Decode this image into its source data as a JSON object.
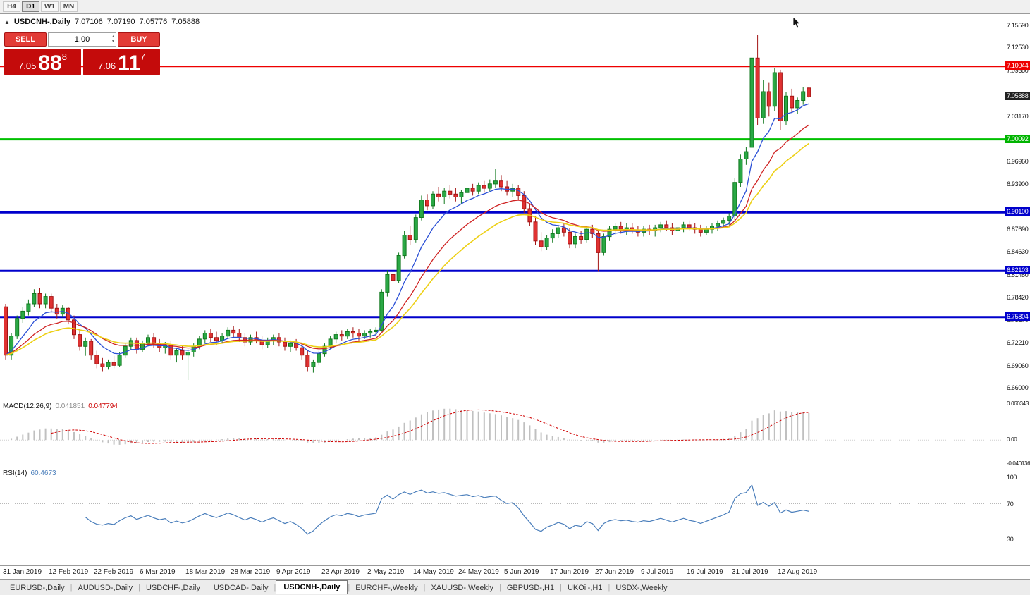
{
  "toolbar": {
    "timeframes": [
      {
        "label": "H4",
        "active": false
      },
      {
        "label": "D1",
        "active": true
      },
      {
        "label": "W1",
        "active": false
      },
      {
        "label": "MN",
        "active": false
      }
    ]
  },
  "chart_header": {
    "expand_icon": "▲",
    "symbol": "USDCNH-,Daily",
    "open": "7.07106",
    "high": "7.07190",
    "low": "7.05776",
    "close": "7.05888"
  },
  "trade_panel": {
    "sell_label": "SELL",
    "buy_label": "BUY",
    "volume": "1.00",
    "volume_up_icon": "▴",
    "volume_down_icon": "▾",
    "sell_price_small": "7.05",
    "sell_price_big": "88",
    "sell_price_sup": "8",
    "buy_price_small": "7.06",
    "buy_price_big": "11",
    "buy_price_sup": "7"
  },
  "indicators": {
    "macd_name": "MACD(12,26,9)",
    "macd_main": "0.041851",
    "macd_signal": "0.047794",
    "rsi_name": "RSI(14)",
    "rsi_value": "60.4673"
  },
  "price_scale": {
    "ticks": [
      {
        "label": "7.15590",
        "value": 7.1559
      },
      {
        "label": "7.12530",
        "value": 7.1253
      },
      {
        "label": "7.09380",
        "value": 7.0938
      },
      {
        "label": "7.03170",
        "value": 7.0317
      },
      {
        "label": "6.96960",
        "value": 6.9696
      },
      {
        "label": "6.93900",
        "value": 6.939
      },
      {
        "label": "6.87690",
        "value": 6.8769
      },
      {
        "label": "6.84630",
        "value": 6.8463
      },
      {
        "label": "6.81480",
        "value": 6.8148
      },
      {
        "label": "6.78420",
        "value": 6.7842
      },
      {
        "label": "6.75270",
        "value": 6.7527
      },
      {
        "label": "6.72210",
        "value": 6.7221
      },
      {
        "label": "6.69060",
        "value": 6.6906
      },
      {
        "label": "6.66000",
        "value": 6.66
      }
    ],
    "badges": [
      {
        "label": "7.10044",
        "value": 7.10044,
        "color": "#ee0000"
      },
      {
        "label": "7.05888",
        "value": 7.05888,
        "color": "#222222"
      },
      {
        "label": "7.00092",
        "value": 7.00092,
        "color": "#00b400"
      },
      {
        "label": "6.90100",
        "value": 6.901,
        "color": "#0000cc"
      },
      {
        "label": "6.82103",
        "value": 6.82103,
        "color": "#0000cc"
      },
      {
        "label": "6.75804",
        "value": 6.75804,
        "color": "#0000cc"
      }
    ],
    "macd_ticks": [
      {
        "label": "0.060343",
        "value": 0.060343
      },
      {
        "label": "0.00",
        "value": 0
      },
      {
        "label": "-0.040136",
        "value": -0.040136
      }
    ],
    "rsi_ticks": [
      {
        "label": "100",
        "value": 100
      },
      {
        "label": "70",
        "value": 70
      },
      {
        "label": "30",
        "value": 30
      }
    ]
  },
  "time_axis": {
    "labels": [
      {
        "text": "31 Jan 2019",
        "candle_index": 0
      },
      {
        "text": "12 Feb 2019",
        "candle_index": 8
      },
      {
        "text": "22 Feb 2019",
        "candle_index": 16
      },
      {
        "text": "6 Mar 2019",
        "candle_index": 24
      },
      {
        "text": "18 Mar 2019",
        "candle_index": 32
      },
      {
        "text": "28 Mar 2019",
        "candle_index": 40
      },
      {
        "text": "9 Apr 2019",
        "candle_index": 48
      },
      {
        "text": "22 Apr 2019",
        "candle_index": 56
      },
      {
        "text": "2 May 2019",
        "candle_index": 64
      },
      {
        "text": "14 May 2019",
        "candle_index": 72
      },
      {
        "text": "24 May 2019",
        "candle_index": 80
      },
      {
        "text": "5 Jun 2019",
        "candle_index": 88
      },
      {
        "text": "17 Jun 2019",
        "candle_index": 96
      },
      {
        "text": "27 Jun 2019",
        "candle_index": 104
      },
      {
        "text": "9 Jul 2019",
        "candle_index": 112
      },
      {
        "text": "19 Jul 2019",
        "candle_index": 120
      },
      {
        "text": "31 Jul 2019",
        "candle_index": 128
      },
      {
        "text": "12 Aug 2019",
        "candle_index": 136
      }
    ]
  },
  "tabs": [
    {
      "label": "EURUSD-,Daily",
      "active": false
    },
    {
      "label": "AUDUSD-,Daily",
      "active": false
    },
    {
      "label": "USDCHF-,Daily",
      "active": false
    },
    {
      "label": "USDCAD-,Daily",
      "active": false
    },
    {
      "label": "USDCNH-,Daily",
      "active": true
    },
    {
      "label": "EURCHF-,Weekly",
      "active": false
    },
    {
      "label": "XAUUSD-,Weekly",
      "active": false
    },
    {
      "label": "GBPUSD-,H1",
      "active": false
    },
    {
      "label": "UKOil-,H1",
      "active": false
    },
    {
      "label": "USDX-,Weekly",
      "active": false
    }
  ],
  "chart_data": {
    "type": "candlestick",
    "symbol": "USDCNH",
    "timeframe": "Daily",
    "current_price": 7.05888,
    "ylim": [
      6.645,
      7.172
    ],
    "colors": {
      "up": "#2aa845",
      "up_border": "#12791f",
      "down": "#e03232",
      "down_border": "#a31414",
      "ma_fast": "#2b50d6",
      "ma_medium": "#cf2222",
      "ma_slow": "#edd016",
      "macd_bar": "#c0c0c0",
      "macd_signal": "#d00000",
      "rsi_line": "#4a7ebb"
    },
    "levels": [
      {
        "price": 7.10044,
        "color": "#ee0000",
        "width": 2
      },
      {
        "price": 7.00092,
        "color": "#00c000",
        "width": 3
      },
      {
        "price": 6.901,
        "color": "#0000cc",
        "width": 3
      },
      {
        "price": 6.82103,
        "color": "#0000cc",
        "width": 3
      },
      {
        "price": 6.75804,
        "color": "#0000cc",
        "width": 3
      }
    ],
    "moving_averages": [
      {
        "name": "fast",
        "type": "ema",
        "period": 8,
        "width": 1.3
      },
      {
        "name": "medium",
        "type": "ema",
        "period": 16,
        "width": 1.3
      },
      {
        "name": "slow",
        "type": "ema",
        "period": 24,
        "width": 1.6
      }
    ],
    "macd": {
      "fast": 12,
      "slow": 26,
      "signal_period": 9,
      "ylim": [
        -0.045,
        0.068
      ],
      "main_value": 0.041851,
      "signal_value": 0.047794
    },
    "rsi": {
      "period": 14,
      "value": 60.4673,
      "levels": [
        70,
        30
      ],
      "ylim": [
        0,
        112
      ]
    },
    "candles": [
      [
        6.772,
        6.776,
        6.7,
        6.706
      ],
      [
        6.706,
        6.736,
        6.7,
        6.732
      ],
      [
        6.732,
        6.76,
        6.728,
        6.756
      ],
      [
        6.756,
        6.772,
        6.75,
        6.766
      ],
      [
        6.766,
        6.782,
        6.76,
        6.776
      ],
      [
        6.776,
        6.796,
        6.772,
        6.79
      ],
      [
        6.79,
        6.798,
        6.77,
        6.776
      ],
      [
        6.776,
        6.79,
        6.77,
        6.786
      ],
      [
        6.786,
        6.79,
        6.764,
        6.77
      ],
      [
        6.77,
        6.776,
        6.756,
        6.762
      ],
      [
        6.762,
        6.774,
        6.758,
        6.77
      ],
      [
        6.77,
        6.772,
        6.748,
        6.754
      ],
      [
        6.754,
        6.76,
        6.728,
        6.734
      ],
      [
        6.734,
        6.742,
        6.712,
        6.718
      ],
      [
        6.718,
        6.73,
        6.705,
        6.725
      ],
      [
        6.725,
        6.728,
        6.7,
        6.706
      ],
      [
        6.706,
        6.712,
        6.688,
        6.694
      ],
      [
        6.694,
        6.702,
        6.684,
        6.69
      ],
      [
        6.69,
        6.7,
        6.686,
        6.696
      ],
      [
        6.696,
        6.705,
        6.688,
        6.692
      ],
      [
        6.692,
        6.71,
        6.69,
        6.706
      ],
      [
        6.706,
        6.722,
        6.702,
        6.718
      ],
      [
        6.718,
        6.73,
        6.714,
        6.726
      ],
      [
        6.726,
        6.73,
        6.708,
        6.714
      ],
      [
        6.714,
        6.726,
        6.71,
        6.722
      ],
      [
        6.722,
        6.734,
        6.718,
        6.73
      ],
      [
        6.73,
        6.736,
        6.716,
        6.722
      ],
      [
        6.722,
        6.728,
        6.71,
        6.716
      ],
      [
        6.716,
        6.724,
        6.708,
        6.72
      ],
      [
        6.72,
        6.726,
        6.7,
        6.706
      ],
      [
        6.706,
        6.716,
        6.696,
        6.712
      ],
      [
        6.712,
        6.718,
        6.7,
        6.706
      ],
      [
        6.706,
        6.714,
        6.672,
        6.71
      ],
      [
        6.71,
        6.722,
        6.704,
        6.718
      ],
      [
        6.718,
        6.732,
        6.714,
        6.728
      ],
      [
        6.728,
        6.74,
        6.722,
        6.736
      ],
      [
        6.736,
        6.742,
        6.724,
        6.73
      ],
      [
        6.73,
        6.738,
        6.72,
        6.726
      ],
      [
        6.726,
        6.736,
        6.722,
        6.732
      ],
      [
        6.732,
        6.744,
        6.728,
        6.74
      ],
      [
        6.74,
        6.746,
        6.73,
        6.736
      ],
      [
        6.736,
        6.742,
        6.724,
        6.73
      ],
      [
        6.73,
        6.736,
        6.718,
        6.724
      ],
      [
        6.724,
        6.734,
        6.72,
        6.73
      ],
      [
        6.73,
        6.738,
        6.722,
        6.726
      ],
      [
        6.726,
        6.732,
        6.714,
        6.72
      ],
      [
        6.72,
        6.73,
        6.716,
        6.726
      ],
      [
        6.726,
        6.734,
        6.72,
        6.73
      ],
      [
        6.73,
        6.736,
        6.718,
        6.724
      ],
      [
        6.724,
        6.73,
        6.712,
        6.718
      ],
      [
        6.718,
        6.726,
        6.71,
        6.722
      ],
      [
        6.722,
        6.728,
        6.712,
        6.716
      ],
      [
        6.716,
        6.722,
        6.7,
        6.706
      ],
      [
        6.706,
        6.712,
        6.684,
        6.69
      ],
      [
        6.69,
        6.7,
        6.682,
        6.696
      ],
      [
        6.696,
        6.712,
        6.692,
        6.708
      ],
      [
        6.708,
        6.722,
        6.704,
        6.718
      ],
      [
        6.718,
        6.732,
        6.714,
        6.728
      ],
      [
        6.728,
        6.738,
        6.722,
        6.734
      ],
      [
        6.734,
        6.74,
        6.726,
        6.732
      ],
      [
        6.732,
        6.742,
        6.728,
        6.738
      ],
      [
        6.738,
        6.744,
        6.73,
        6.736
      ],
      [
        6.736,
        6.742,
        6.726,
        6.732
      ],
      [
        6.732,
        6.74,
        6.728,
        6.736
      ],
      [
        6.736,
        6.742,
        6.73,
        6.738
      ],
      [
        6.738,
        6.744,
        6.732,
        6.74
      ],
      [
        6.74,
        6.796,
        6.738,
        6.792
      ],
      [
        6.792,
        6.822,
        6.786,
        6.816
      ],
      [
        6.816,
        6.826,
        6.8,
        6.808
      ],
      [
        6.808,
        6.846,
        6.804,
        6.842
      ],
      [
        6.842,
        6.876,
        6.838,
        6.87
      ],
      [
        6.87,
        6.882,
        6.856,
        6.864
      ],
      [
        6.864,
        6.898,
        6.86,
        6.894
      ],
      [
        6.894,
        6.924,
        6.89,
        6.918
      ],
      [
        6.918,
        6.926,
        6.904,
        6.91
      ],
      [
        6.91,
        6.93,
        6.906,
        6.926
      ],
      [
        6.926,
        6.936,
        6.916,
        6.922
      ],
      [
        6.922,
        6.934,
        6.912,
        6.93
      ],
      [
        6.93,
        6.938,
        6.92,
        6.926
      ],
      [
        6.926,
        6.934,
        6.916,
        6.922
      ],
      [
        6.922,
        6.932,
        6.912,
        6.928
      ],
      [
        6.928,
        6.938,
        6.922,
        6.934
      ],
      [
        6.934,
        6.94,
        6.924,
        6.93
      ],
      [
        6.93,
        6.942,
        6.926,
        6.938
      ],
      [
        6.938,
        6.944,
        6.928,
        6.934
      ],
      [
        6.934,
        6.946,
        6.93,
        6.94
      ],
      [
        6.94,
        6.96,
        6.934,
        6.944
      ],
      [
        6.944,
        6.952,
        6.93,
        6.936
      ],
      [
        6.936,
        6.944,
        6.924,
        6.93
      ],
      [
        6.93,
        6.94,
        6.922,
        6.934
      ],
      [
        6.934,
        6.938,
        6.918,
        6.924
      ],
      [
        6.924,
        6.93,
        6.9,
        6.906
      ],
      [
        6.906,
        6.912,
        6.882,
        6.888
      ],
      [
        6.888,
        6.896,
        6.856,
        6.862
      ],
      [
        6.862,
        6.874,
        6.848,
        6.854
      ],
      [
        6.854,
        6.87,
        6.85,
        6.866
      ],
      [
        6.866,
        6.878,
        6.86,
        6.872
      ],
      [
        6.872,
        6.884,
        6.866,
        6.88
      ],
      [
        6.88,
        6.886,
        6.868,
        6.874
      ],
      [
        6.874,
        6.88,
        6.852,
        6.858
      ],
      [
        6.858,
        6.872,
        6.852,
        6.868
      ],
      [
        6.868,
        6.876,
        6.858,
        6.864
      ],
      [
        6.864,
        6.882,
        6.86,
        6.878
      ],
      [
        6.878,
        6.884,
        6.866,
        6.872
      ],
      [
        6.872,
        6.878,
        6.82,
        6.846
      ],
      [
        6.846,
        6.872,
        6.842,
        6.868
      ],
      [
        6.868,
        6.882,
        6.862,
        6.878
      ],
      [
        6.878,
        6.886,
        6.87,
        6.882
      ],
      [
        6.882,
        6.888,
        6.872,
        6.878
      ],
      [
        6.878,
        6.886,
        6.87,
        6.88
      ],
      [
        6.88,
        6.886,
        6.872,
        6.876
      ],
      [
        6.876,
        6.882,
        6.868,
        6.874
      ],
      [
        6.874,
        6.882,
        6.868,
        6.878
      ],
      [
        6.878,
        6.884,
        6.87,
        6.876
      ],
      [
        6.876,
        6.884,
        6.868,
        6.88
      ],
      [
        6.88,
        6.888,
        6.874,
        6.884
      ],
      [
        6.884,
        6.89,
        6.876,
        6.88
      ],
      [
        6.88,
        6.886,
        6.87,
        6.876
      ],
      [
        6.876,
        6.884,
        6.87,
        6.88
      ],
      [
        6.88,
        6.888,
        6.874,
        6.884
      ],
      [
        6.884,
        6.89,
        6.876,
        6.88
      ],
      [
        6.88,
        6.886,
        6.872,
        6.878
      ],
      [
        6.878,
        6.884,
        6.868,
        6.874
      ],
      [
        6.874,
        6.882,
        6.87,
        6.878
      ],
      [
        6.878,
        6.886,
        6.872,
        6.882
      ],
      [
        6.882,
        6.89,
        6.876,
        6.886
      ],
      [
        6.886,
        6.894,
        6.88,
        6.89
      ],
      [
        6.89,
        6.9,
        6.884,
        6.896
      ],
      [
        6.896,
        6.948,
        6.89,
        6.942
      ],
      [
        6.942,
        6.98,
        6.936,
        6.974
      ],
      [
        6.974,
        6.99,
        6.966,
        6.984
      ],
      [
        6.99,
        7.124,
        6.986,
        7.112
      ],
      [
        7.112,
        7.1436,
        7.02,
        7.03
      ],
      [
        7.03,
        7.082,
        7.022,
        7.066
      ],
      [
        7.066,
        7.078,
        7.032,
        7.046
      ],
      [
        7.046,
        7.098,
        7.04,
        7.092
      ],
      [
        7.092,
        7.096,
        7.014,
        7.026
      ],
      [
        7.026,
        7.066,
        7.02,
        7.06
      ],
      [
        7.06,
        7.07,
        7.038,
        7.044
      ],
      [
        7.044,
        7.058,
        7.036,
        7.054
      ],
      [
        7.054,
        7.072,
        7.048,
        7.066
      ],
      [
        7.07106,
        7.0719,
        7.05776,
        7.05888
      ]
    ]
  }
}
